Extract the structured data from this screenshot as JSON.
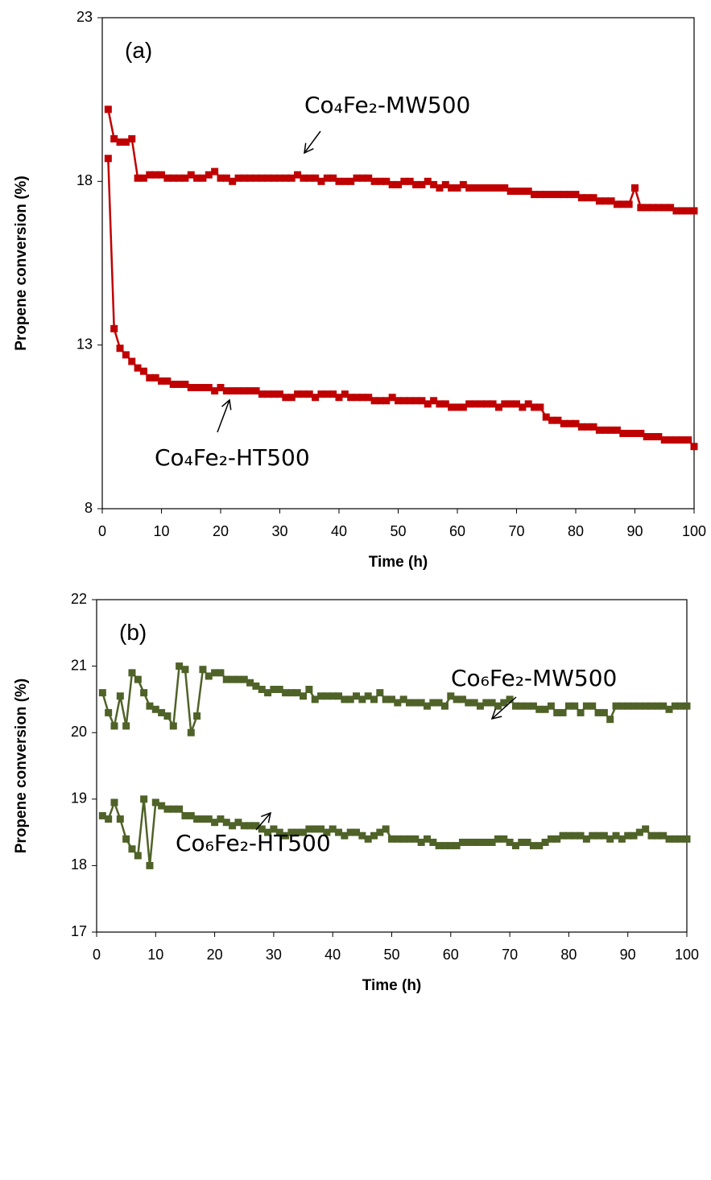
{
  "chart_data": [
    {
      "type": "line",
      "panel_label": "(a)",
      "xlabel": "Time (h)",
      "ylabel": "Propene conversion  (%)",
      "xlim": [
        0,
        100
      ],
      "xticks": [
        0,
        10,
        20,
        30,
        40,
        50,
        60,
        70,
        80,
        90,
        100
      ],
      "ylim": [
        8,
        23
      ],
      "yticks": [
        8,
        13,
        18,
        23
      ],
      "x": [
        1,
        2,
        3,
        4,
        5,
        6,
        7,
        8,
        9,
        10,
        11,
        12,
        13,
        14,
        15,
        16,
        17,
        18,
        19,
        20,
        21,
        22,
        23,
        24,
        25,
        26,
        27,
        28,
        29,
        30,
        31,
        32,
        33,
        34,
        35,
        36,
        37,
        38,
        39,
        40,
        41,
        42,
        43,
        44,
        45,
        46,
        47,
        48,
        49,
        50,
        51,
        52,
        53,
        54,
        55,
        56,
        57,
        58,
        59,
        60,
        61,
        62,
        63,
        64,
        65,
        66,
        67,
        68,
        69,
        70,
        71,
        72,
        73,
        74,
        75,
        76,
        77,
        78,
        79,
        80,
        81,
        82,
        83,
        84,
        85,
        86,
        87,
        88,
        89,
        90,
        91,
        92,
        93,
        94,
        95,
        96,
        97,
        98,
        99,
        100
      ],
      "series": [
        {
          "name": "Co₄Fe₂-MW500",
          "color": "#c00000",
          "values": [
            20.2,
            19.3,
            19.2,
            19.2,
            19.3,
            18.1,
            18.1,
            18.2,
            18.2,
            18.2,
            18.1,
            18.1,
            18.1,
            18.1,
            18.2,
            18.1,
            18.1,
            18.2,
            18.3,
            18.1,
            18.1,
            18.0,
            18.1,
            18.1,
            18.1,
            18.1,
            18.1,
            18.1,
            18.1,
            18.1,
            18.1,
            18.1,
            18.2,
            18.1,
            18.1,
            18.1,
            18.0,
            18.1,
            18.1,
            18.0,
            18.0,
            18.0,
            18.1,
            18.1,
            18.1,
            18.0,
            18.0,
            18.0,
            17.9,
            17.9,
            18.0,
            18.0,
            17.9,
            17.9,
            18.0,
            17.9,
            17.8,
            17.9,
            17.8,
            17.8,
            17.9,
            17.8,
            17.8,
            17.8,
            17.8,
            17.8,
            17.8,
            17.8,
            17.7,
            17.7,
            17.7,
            17.7,
            17.6,
            17.6,
            17.6,
            17.6,
            17.6,
            17.6,
            17.6,
            17.6,
            17.5,
            17.5,
            17.5,
            17.4,
            17.4,
            17.4,
            17.3,
            17.3,
            17.3,
            17.8,
            17.2,
            17.2,
            17.2,
            17.2,
            17.2,
            17.2,
            17.1,
            17.1,
            17.1,
            17.1
          ]
        },
        {
          "name": "Co₄Fe₂-HT500",
          "color": "#c00000",
          "values": [
            18.7,
            13.5,
            12.9,
            12.7,
            12.5,
            12.3,
            12.2,
            12.0,
            12.0,
            11.9,
            11.9,
            11.8,
            11.8,
            11.8,
            11.7,
            11.7,
            11.7,
            11.7,
            11.6,
            11.7,
            11.6,
            11.6,
            11.6,
            11.6,
            11.6,
            11.6,
            11.5,
            11.5,
            11.5,
            11.5,
            11.4,
            11.4,
            11.5,
            11.5,
            11.5,
            11.4,
            11.5,
            11.5,
            11.5,
            11.4,
            11.5,
            11.4,
            11.4,
            11.4,
            11.4,
            11.3,
            11.3,
            11.3,
            11.4,
            11.3,
            11.3,
            11.3,
            11.3,
            11.3,
            11.2,
            11.3,
            11.2,
            11.2,
            11.1,
            11.1,
            11.1,
            11.2,
            11.2,
            11.2,
            11.2,
            11.2,
            11.1,
            11.2,
            11.2,
            11.2,
            11.1,
            11.2,
            11.1,
            11.1,
            10.8,
            10.7,
            10.7,
            10.6,
            10.6,
            10.6,
            10.5,
            10.5,
            10.5,
            10.4,
            10.4,
            10.4,
            10.4,
            10.3,
            10.3,
            10.3,
            10.3,
            10.2,
            10.2,
            10.2,
            10.1,
            10.1,
            10.1,
            10.1,
            10.1,
            9.9
          ]
        }
      ]
    },
    {
      "type": "line",
      "panel_label": "(b)",
      "xlabel": "Time (h)",
      "ylabel": "Propene conversion (%)",
      "xlim": [
        0,
        100
      ],
      "xticks": [
        0,
        10,
        20,
        30,
        40,
        50,
        60,
        70,
        80,
        90,
        100
      ],
      "ylim": [
        17,
        22
      ],
      "yticks": [
        17,
        18,
        19,
        20,
        21,
        22
      ],
      "x": [
        1,
        2,
        3,
        4,
        5,
        6,
        7,
        8,
        9,
        10,
        11,
        12,
        13,
        14,
        15,
        16,
        17,
        18,
        19,
        20,
        21,
        22,
        23,
        24,
        25,
        26,
        27,
        28,
        29,
        30,
        31,
        32,
        33,
        34,
        35,
        36,
        37,
        38,
        39,
        40,
        41,
        42,
        43,
        44,
        45,
        46,
        47,
        48,
        49,
        50,
        51,
        52,
        53,
        54,
        55,
        56,
        57,
        58,
        59,
        60,
        61,
        62,
        63,
        64,
        65,
        66,
        67,
        68,
        69,
        70,
        71,
        72,
        73,
        74,
        75,
        76,
        77,
        78,
        79,
        80,
        81,
        82,
        83,
        84,
        85,
        86,
        87,
        88,
        89,
        90,
        91,
        92,
        93,
        94,
        95,
        96,
        97,
        98,
        99,
        100
      ],
      "series": [
        {
          "name": "Co₆Fe₂-MW500",
          "color": "#4f6228",
          "values": [
            20.6,
            20.3,
            20.1,
            20.55,
            20.1,
            20.9,
            20.8,
            20.6,
            20.4,
            20.35,
            20.3,
            20.25,
            20.1,
            21.0,
            20.95,
            20.0,
            20.25,
            20.95,
            20.85,
            20.9,
            20.9,
            20.8,
            20.8,
            20.8,
            20.8,
            20.75,
            20.7,
            20.65,
            20.6,
            20.65,
            20.65,
            20.6,
            20.6,
            20.6,
            20.55,
            20.65,
            20.5,
            20.55,
            20.55,
            20.55,
            20.55,
            20.5,
            20.5,
            20.55,
            20.5,
            20.55,
            20.5,
            20.6,
            20.5,
            20.5,
            20.45,
            20.5,
            20.45,
            20.45,
            20.45,
            20.4,
            20.45,
            20.45,
            20.4,
            20.55,
            20.5,
            20.5,
            20.45,
            20.45,
            20.4,
            20.45,
            20.45,
            20.4,
            20.45,
            20.5,
            20.4,
            20.4,
            20.4,
            20.4,
            20.35,
            20.35,
            20.4,
            20.3,
            20.3,
            20.4,
            20.4,
            20.3,
            20.4,
            20.4,
            20.3,
            20.3,
            20.2,
            20.4,
            20.4,
            20.4,
            20.4,
            20.4,
            20.4,
            20.4,
            20.4,
            20.4,
            20.35,
            20.4,
            20.4,
            20.4
          ]
        },
        {
          "name": "Co₆Fe₂-HT500",
          "color": "#4f6228",
          "values": [
            18.75,
            18.7,
            18.95,
            18.7,
            18.4,
            18.25,
            18.15,
            19.0,
            18.0,
            18.95,
            18.9,
            18.85,
            18.85,
            18.85,
            18.75,
            18.75,
            18.7,
            18.7,
            18.7,
            18.65,
            18.7,
            18.65,
            18.6,
            18.65,
            18.6,
            18.6,
            18.6,
            18.55,
            18.5,
            18.55,
            18.5,
            18.45,
            18.5,
            18.5,
            18.5,
            18.55,
            18.55,
            18.55,
            18.5,
            18.55,
            18.5,
            18.45,
            18.5,
            18.5,
            18.45,
            18.4,
            18.45,
            18.5,
            18.55,
            18.4,
            18.4,
            18.4,
            18.4,
            18.4,
            18.35,
            18.4,
            18.35,
            18.3,
            18.3,
            18.3,
            18.3,
            18.35,
            18.35,
            18.35,
            18.35,
            18.35,
            18.35,
            18.4,
            18.4,
            18.35,
            18.3,
            18.35,
            18.35,
            18.3,
            18.3,
            18.35,
            18.4,
            18.4,
            18.45,
            18.45,
            18.45,
            18.45,
            18.4,
            18.45,
            18.45,
            18.45,
            18.4,
            18.45,
            18.4,
            18.45,
            18.45,
            18.5,
            18.55,
            18.45,
            18.45,
            18.45,
            18.4,
            18.4,
            18.4,
            18.4
          ]
        }
      ]
    }
  ]
}
